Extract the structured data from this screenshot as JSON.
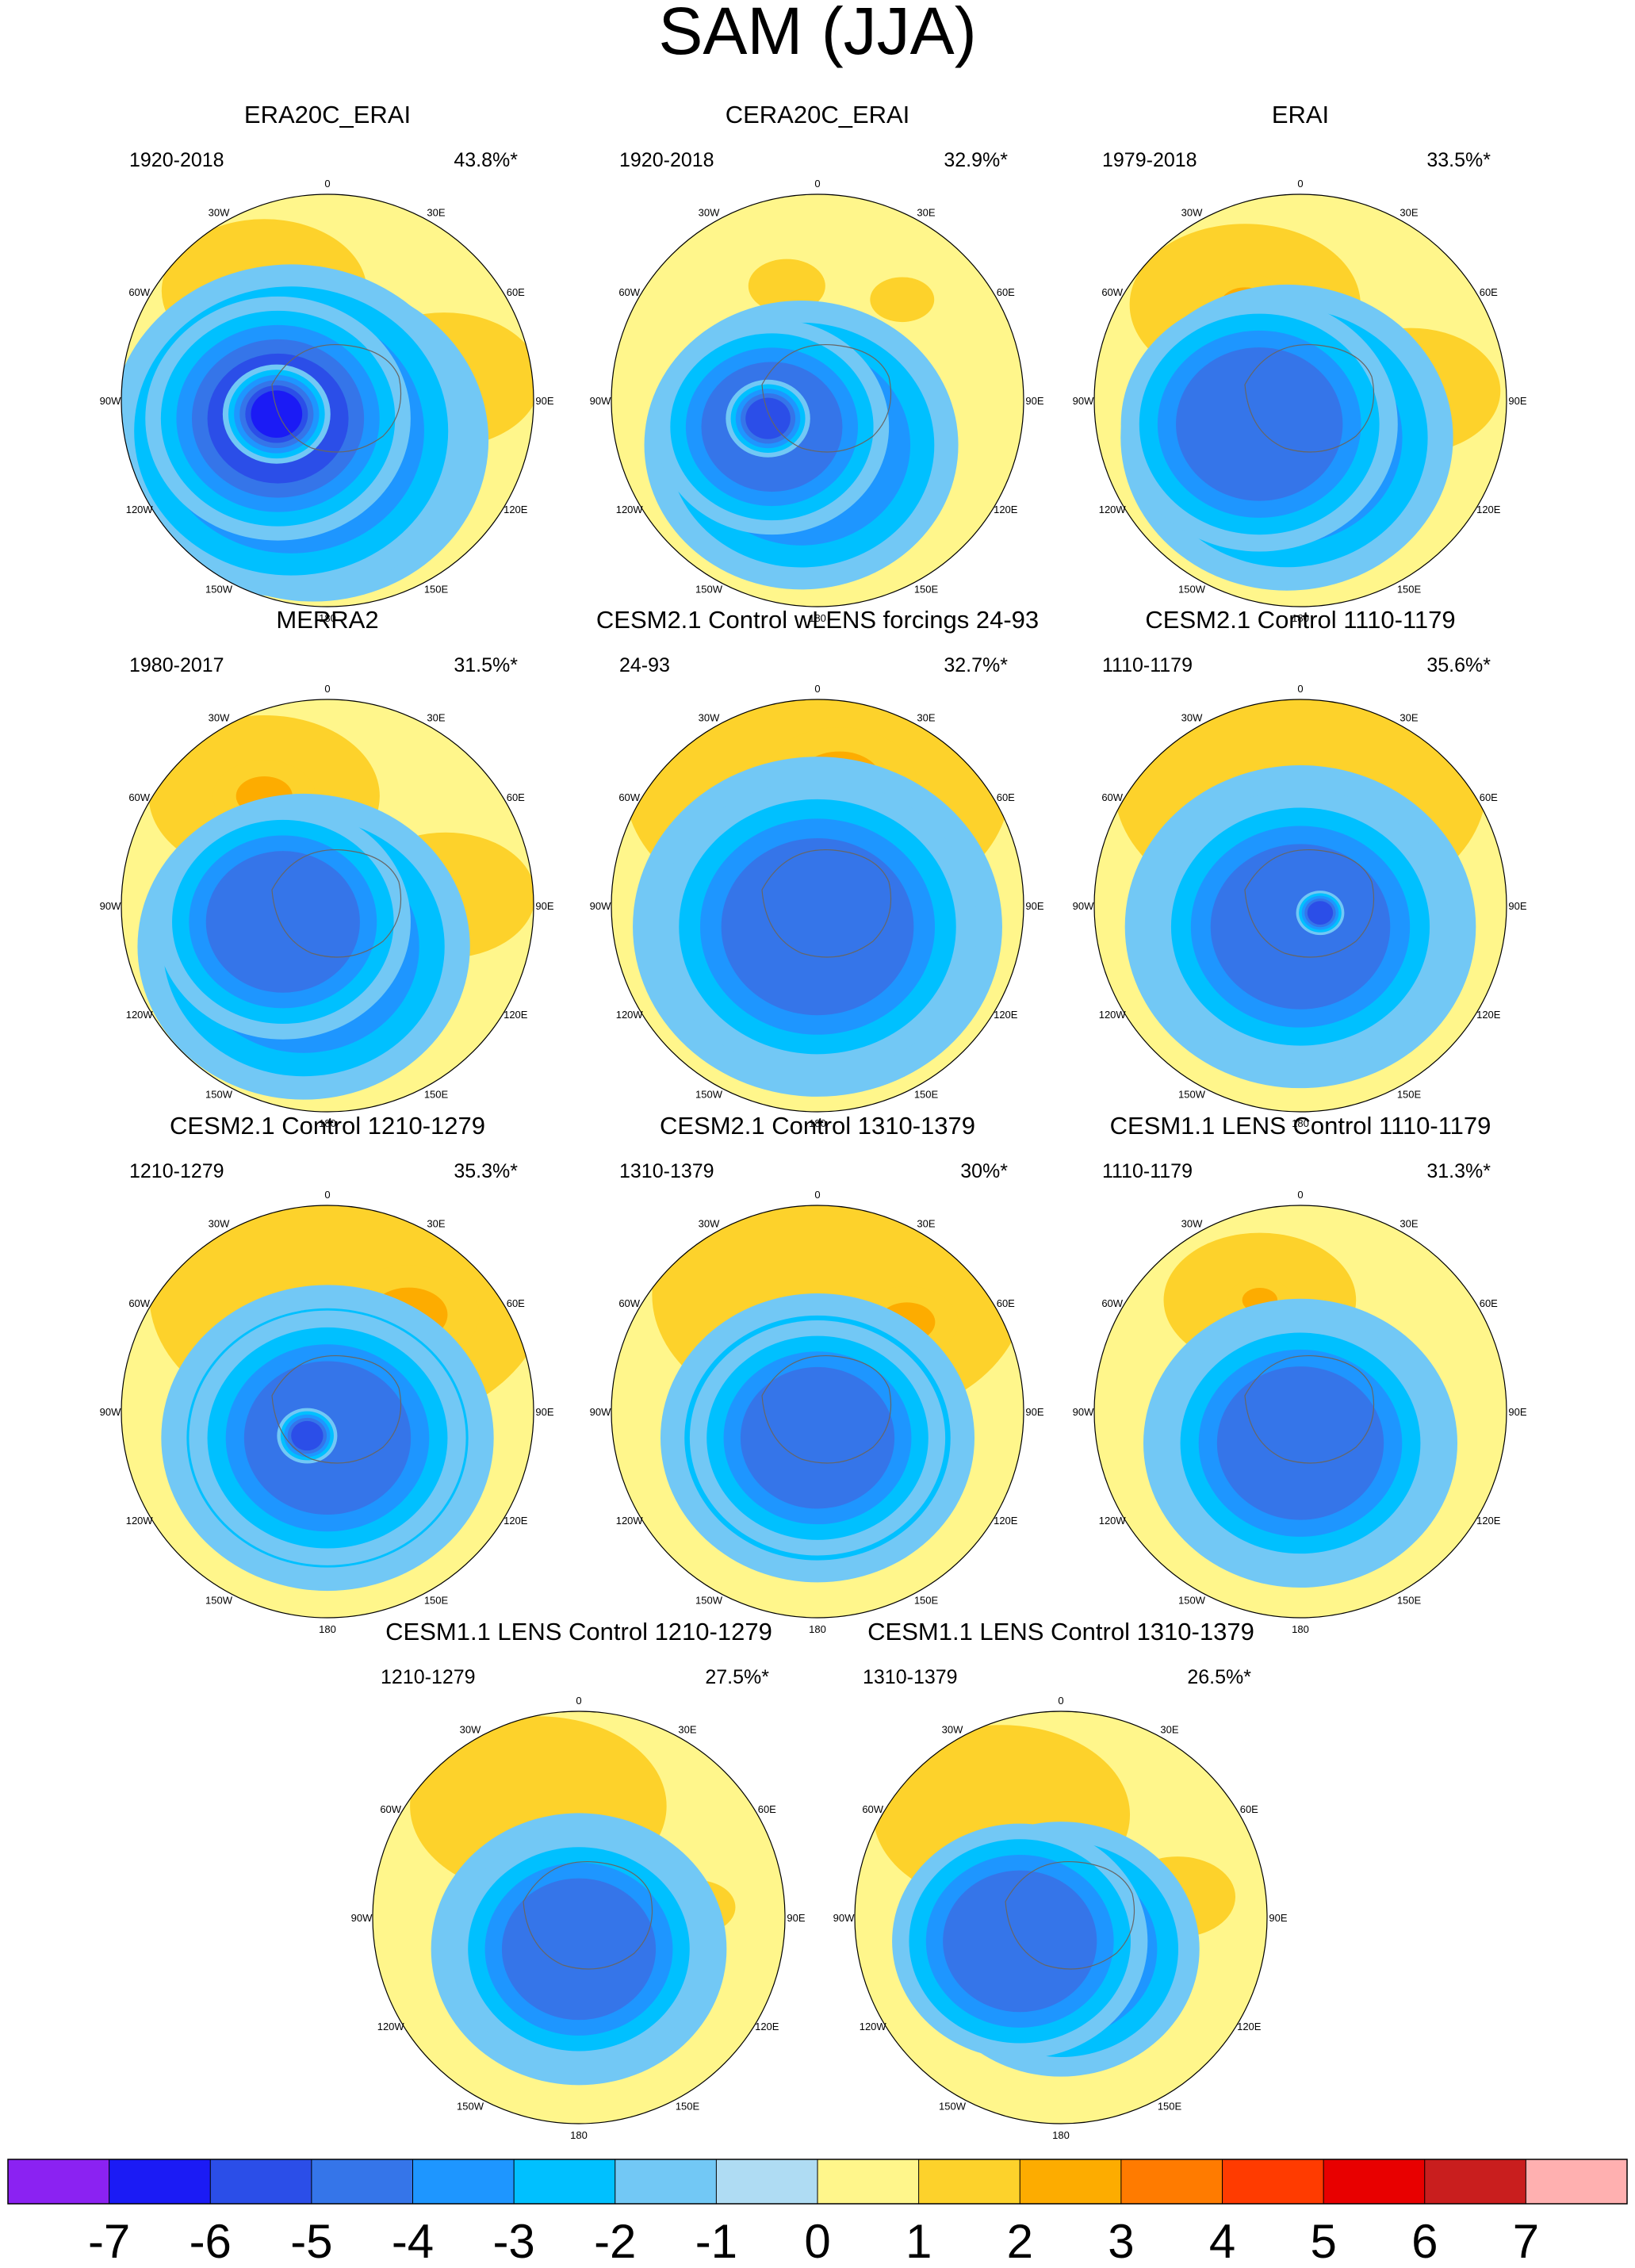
{
  "chart_data": {
    "type": "polar stereographic contour maps",
    "title": "SAM (JJA)",
    "projection": "south polar stereographic",
    "longitude_labels": [
      "0",
      "30E",
      "60E",
      "90E",
      "120E",
      "150E",
      "180",
      "150W",
      "120W",
      "90W",
      "60W",
      "30W"
    ],
    "panels": [
      {
        "title": "ERA20C_ERAI",
        "period": "1920-2018",
        "variance": "43.8%*",
        "features": [
          {
            "lon": -20,
            "lat": -74,
            "level": -3,
            "r": 38
          },
          {
            "lon": -50,
            "lat": -72,
            "level": -4,
            "r": 34
          },
          {
            "lon": -70,
            "lat": -70,
            "level": -5,
            "r": 22
          },
          {
            "lon": -75,
            "lat": -70,
            "level": -6,
            "r": 8
          },
          {
            "lon": 100,
            "lat": -45,
            "level": 1,
            "r": 30
          },
          {
            "lon": -150,
            "lat": -42,
            "level": 1,
            "r": 32
          }
        ]
      },
      {
        "title": "CERA20C_ERAI",
        "period": "1920-2018",
        "variance": "32.9%*",
        "features": [
          {
            "lon": -20,
            "lat": -72,
            "level": -3,
            "r": 34
          },
          {
            "lon": -60,
            "lat": -70,
            "level": -4,
            "r": 22
          },
          {
            "lon": -70,
            "lat": -70,
            "level": -5,
            "r": 7
          },
          {
            "lon": 140,
            "lat": -40,
            "level": 1,
            "r": 10
          },
          {
            "lon": -165,
            "lat": -45,
            "level": 1,
            "r": 12
          }
        ]
      },
      {
        "title": "ERAI",
        "period": "1979-2018",
        "variance": "33.5%*",
        "features": [
          {
            "lon": -20,
            "lat": -75,
            "level": -3,
            "r": 36
          },
          {
            "lon": -60,
            "lat": -72,
            "level": -4,
            "r": 26
          },
          {
            "lon": 95,
            "lat": -48,
            "level": 1,
            "r": 28
          },
          {
            "lon": 95,
            "lat": -48,
            "level": 2,
            "r": 10
          },
          {
            "lon": -150,
            "lat": -48,
            "level": 1,
            "r": 36
          },
          {
            "lon": -150,
            "lat": -48,
            "level": 2,
            "r": 14
          }
        ]
      },
      {
        "title": "MERRA2",
        "period": "1980-2017",
        "variance": "31.5%*",
        "features": [
          {
            "lon": -30,
            "lat": -72,
            "level": -3,
            "r": 36
          },
          {
            "lon": -70,
            "lat": -72,
            "level": -4,
            "r": 24
          },
          {
            "lon": 95,
            "lat": -45,
            "level": 1,
            "r": 28
          },
          {
            "lon": 95,
            "lat": -45,
            "level": 2,
            "r": 4
          },
          {
            "lon": -150,
            "lat": -42,
            "level": 1,
            "r": 36
          },
          {
            "lon": -150,
            "lat": -42,
            "level": 2,
            "r": 16
          }
        ]
      },
      {
        "title": "CESM2.1 Control wLENS forcings 24-93",
        "period": "24-93",
        "variance": "32.7%*",
        "features": [
          {
            "lon": 0,
            "lat": -82,
            "level": -3,
            "r": 40
          },
          {
            "lon": 0,
            "lat": -82,
            "level": -4,
            "r": 30
          },
          {
            "lon": 180,
            "lat": -45,
            "level": 1,
            "r": 60
          },
          {
            "lon": 170,
            "lat": -42,
            "level": 2,
            "r": 24
          }
        ]
      },
      {
        "title": "CESM2.1 Control 1110-1179",
        "period": "1110-1179",
        "variance": "35.6%*",
        "features": [
          {
            "lon": 0,
            "lat": -82,
            "level": -3,
            "r": 38
          },
          {
            "lon": 0,
            "lat": -82,
            "level": -4,
            "r": 28
          },
          {
            "lon": 70,
            "lat": -82,
            "level": -5,
            "r": 4
          },
          {
            "lon": 180,
            "lat": -45,
            "level": 1,
            "r": 58
          }
        ]
      },
      {
        "title": "CESM2.1 Control 1210-1279",
        "period": "1210-1279",
        "variance": "35.3%*",
        "features": [
          {
            "lon": 0,
            "lat": -80,
            "level": -3,
            "r": 36
          },
          {
            "lon": 0,
            "lat": -80,
            "level": -4,
            "r": 26
          },
          {
            "lon": -40,
            "lat": -78,
            "level": -5,
            "r": 5
          },
          {
            "lon": 170,
            "lat": -45,
            "level": 1,
            "r": 62
          },
          {
            "lon": 140,
            "lat": -42,
            "level": 2,
            "r": 22
          }
        ]
      },
      {
        "title": "CESM2.1 Control 1310-1379",
        "period": "1310-1379",
        "variance": "30%*",
        "features": [
          {
            "lon": 0,
            "lat": -80,
            "level": -3,
            "r": 34
          },
          {
            "lon": 0,
            "lat": -80,
            "level": -4,
            "r": 24
          },
          {
            "lon": 170,
            "lat": -45,
            "level": 1,
            "r": 58
          },
          {
            "lon": 135,
            "lat": -42,
            "level": 2,
            "r": 16
          }
        ]
      },
      {
        "title": "CESM1.1 LENS Control 1110-1179",
        "period": "1110-1179",
        "variance": "31.3%*",
        "features": [
          {
            "lon": 0,
            "lat": -78,
            "level": -3,
            "r": 34
          },
          {
            "lon": 0,
            "lat": -78,
            "level": -4,
            "r": 26
          },
          {
            "lon": -160,
            "lat": -45,
            "level": 1,
            "r": 30
          },
          {
            "lon": -160,
            "lat": -45,
            "level": 2,
            "r": 10
          },
          {
            "lon": -30,
            "lat": -48,
            "level": 1,
            "r": 12
          }
        ]
      },
      {
        "title": "CESM1.1 LENS Control 1210-1279",
        "period": "1210-1279",
        "variance": "27.5%*",
        "features": [
          {
            "lon": 0,
            "lat": -78,
            "level": -3,
            "r": 32
          },
          {
            "lon": 0,
            "lat": -78,
            "level": -4,
            "r": 24
          },
          {
            "lon": -160,
            "lat": -45,
            "level": 1,
            "r": 40
          },
          {
            "lon": 95,
            "lat": -45,
            "level": 1,
            "r": 12
          }
        ]
      },
      {
        "title": "CESM1.1 LENS Control 1310-1379",
        "period": "1310-1379",
        "variance": "26.5%*",
        "features": [
          {
            "lon": 0,
            "lat": -78,
            "level": -3,
            "r": 30
          },
          {
            "lon": -60,
            "lat": -72,
            "level": -4,
            "r": 24
          },
          {
            "lon": -150,
            "lat": -45,
            "level": 1,
            "r": 40
          },
          {
            "lon": 100,
            "lat": -45,
            "level": 1,
            "r": 18
          },
          {
            "lon": -50,
            "lat": -45,
            "level": 1,
            "r": 14
          }
        ]
      }
    ],
    "colorbar": {
      "levels": [
        "-7",
        "-6",
        "-5",
        "-4",
        "-3",
        "-2",
        "-1",
        "0",
        "1",
        "2",
        "3",
        "4",
        "5",
        "6",
        "7"
      ],
      "colors": [
        "#8b22f2",
        "#1b1bf5",
        "#2b4ee8",
        "#3575e9",
        "#1e96ff",
        "#00c0ff",
        "#72c8f5",
        "#afdcf3",
        "#fff68b",
        "#fdd22b",
        "#fdac00",
        "#ff7b00",
        "#ff3b00",
        "#e80000",
        "#c91e1e",
        "#ffb0b0"
      ]
    }
  }
}
